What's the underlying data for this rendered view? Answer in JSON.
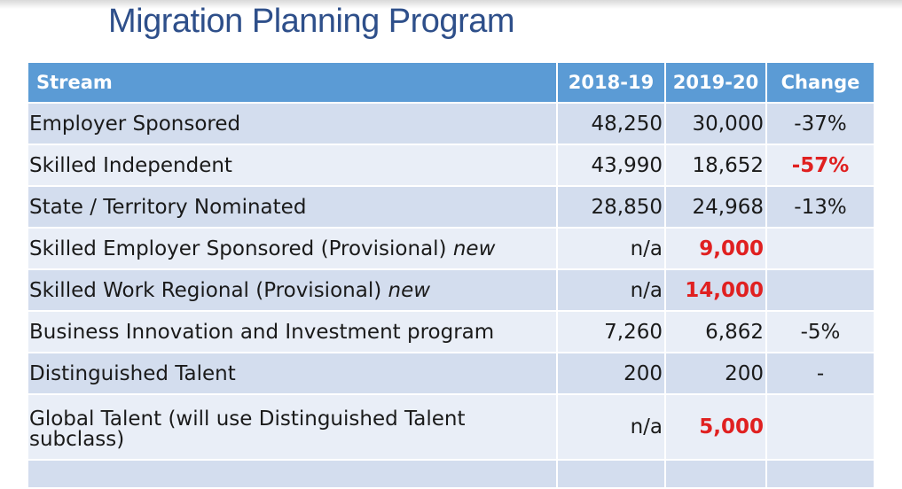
{
  "title": "Migration Planning Program",
  "columns": [
    "Stream",
    "2018-19",
    "2019-20",
    "Change"
  ],
  "rows": [
    {
      "stream": "Employer Sponsored",
      "tag": "",
      "y2018": "48,250",
      "y2019": "30,000",
      "change": "-37%"
    },
    {
      "stream": "Skilled Independent",
      "tag": "",
      "y2018": "43,990",
      "y2019": "18,652",
      "change": "-57%"
    },
    {
      "stream": "State / Territory Nominated",
      "tag": "",
      "y2018": "28,850",
      "y2019": "24,968",
      "change": "-13%"
    },
    {
      "stream": "Skilled Employer Sponsored (Provisional) ",
      "tag": "new",
      "y2018": "n/a",
      "y2019": "9,000",
      "change": ""
    },
    {
      "stream": "Skilled Work Regional (Provisional) ",
      "tag": "new",
      "y2018": "n/a",
      "y2019": "14,000",
      "change": ""
    },
    {
      "stream": "Business Innovation and Investment program",
      "tag": "",
      "y2018": "7,260",
      "y2019": "6,862",
      "change": "-5%"
    },
    {
      "stream": "Distinguished Talent",
      "tag": "",
      "y2018": "200",
      "y2019": "200",
      "change": "-"
    },
    {
      "stream": "Global Talent (will use Distinguished Talent subclass)",
      "tag": "",
      "y2018": "n/a",
      "y2019": "5,000",
      "change": ""
    },
    {
      "stream": "",
      "tag": "",
      "y2018": "",
      "y2019": "",
      "change": ""
    }
  ],
  "colors": {
    "title": "#2e4f8a",
    "header_bg": "#5b9bd5",
    "row_dark": "#d3ddee",
    "row_light": "#e9eef7",
    "highlight": "#e02020"
  }
}
